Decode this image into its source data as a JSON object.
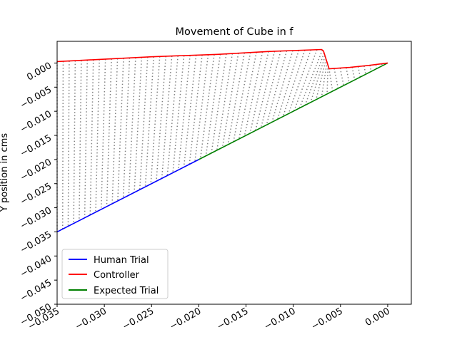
{
  "chart_data": {
    "type": "line",
    "title": "Movement of Cube in f",
    "xlabel": "",
    "ylabel": "Y position in cms",
    "xlim": [
      -0.035,
      0.0025
    ],
    "ylim": [
      -0.05,
      0.0045
    ],
    "grid": false,
    "legend_position": "lower-left",
    "x_ticks": [
      {
        "value": -0.035,
        "label": "−0.035"
      },
      {
        "value": -0.03,
        "label": "−0.030"
      },
      {
        "value": -0.025,
        "label": "−0.025"
      },
      {
        "value": -0.02,
        "label": "−0.020"
      },
      {
        "value": -0.015,
        "label": "−0.015"
      },
      {
        "value": -0.01,
        "label": "−0.010"
      },
      {
        "value": -0.005,
        "label": "−0.005"
      },
      {
        "value": 0.0,
        "label": "0.000"
      }
    ],
    "y_ticks": [
      {
        "value": 0.0,
        "label": "0.000"
      },
      {
        "value": -0.005,
        "label": "−0.005"
      },
      {
        "value": -0.01,
        "label": "−0.010"
      },
      {
        "value": -0.015,
        "label": "−0.015"
      },
      {
        "value": -0.02,
        "label": "−0.020"
      },
      {
        "value": -0.025,
        "label": "−0.025"
      },
      {
        "value": -0.03,
        "label": "−0.030"
      },
      {
        "value": -0.035,
        "label": "−0.035"
      },
      {
        "value": -0.04,
        "label": "−0.040"
      },
      {
        "value": -0.045,
        "label": "−0.045"
      },
      {
        "value": -0.05,
        "label": "−0.050"
      }
    ],
    "series": [
      {
        "name": "Human Trial",
        "color": "#0000ff",
        "x": [
          -0.035,
          -0.02
        ],
        "y": [
          -0.035,
          -0.02
        ]
      },
      {
        "name": "Controller",
        "color": "#ff0000",
        "x": [
          -0.035,
          -0.03,
          -0.025,
          -0.018,
          -0.0125,
          -0.007,
          -0.0068,
          -0.0062,
          -0.004,
          -0.002,
          0.0
        ],
        "y": [
          0.0003,
          0.0008,
          0.0013,
          0.0018,
          0.0024,
          0.0028,
          0.0025,
          -0.0012,
          -0.0009,
          -0.0005,
          0.0
        ]
      },
      {
        "name": "Expected Trial",
        "color": "#008000",
        "x": [
          -0.02,
          0.0
        ],
        "y": [
          -0.02,
          0.0
        ]
      }
    ],
    "connector_lines": {
      "color": "#808080",
      "style": "dotted"
    }
  }
}
